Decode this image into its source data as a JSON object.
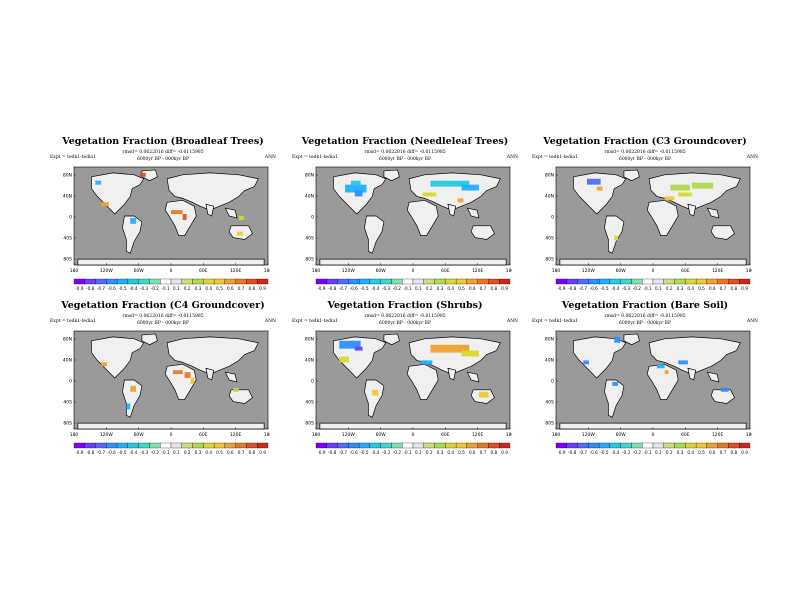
{
  "colorbar_colors": [
    "#7f00ff",
    "#6a3cff",
    "#4f6bff",
    "#2d8fff",
    "#1eb0ff",
    "#21cbe6",
    "#3ed9c8",
    "#7fe0b0",
    "#ffffff",
    "#e6e6e6",
    "#c8e07a",
    "#b0d850",
    "#d8d830",
    "#f0c830",
    "#f0a030",
    "#e87828",
    "#e05020",
    "#d02818"
  ],
  "ocean_color": "#9a9a9a",
  "land_color": "#f0f0f0",
  "panels": [
    {
      "title": "Vegetation Fraction (Broadleaf Trees)",
      "stats": "rmsd= 0.0622016 diff= -0.0115985",
      "expt": "Expt = tedk1-tedia1",
      "years": "6000yr BP - 000kyr BP",
      "season": "ANN",
      "ticks": [
        "-0.9",
        "-0.8",
        "-0.7",
        "-0.6",
        "-0.5",
        "-0.4",
        "-0.3",
        "-0.2",
        "-0.1",
        "0.1",
        "0.2",
        "0.3",
        "0.4",
        "0.5",
        "0.6",
        "0.7",
        "0.8",
        "0.9"
      ],
      "lon_labels": [
        "180",
        "120W",
        "60W",
        "0",
        "60E",
        "120E",
        "180"
      ],
      "lat_labels": [
        "80N",
        "40N",
        "0",
        "40S",
        "80S"
      ]
    },
    {
      "title": "Vegetation Fraction (Needleleaf Trees)",
      "stats": "rmsd= 0.0622016 diff= -0.0115985",
      "expt": "Expt = tedk1-tedia1",
      "years": "6000yr BP - 000kyr BP",
      "season": "ANN",
      "ticks": [
        "-0.9",
        "-0.8",
        "-0.7",
        "-0.6",
        "-0.5",
        "-0.4",
        "-0.3",
        "-0.2",
        "-0.1",
        "0.1",
        "0.2",
        "0.3",
        "0.4",
        "0.5",
        "0.6",
        "0.7",
        "0.8",
        "0.9"
      ],
      "lon_labels": [
        "180",
        "120W",
        "60W",
        "0",
        "60E",
        "120E",
        "180"
      ],
      "lat_labels": [
        "80N",
        "40N",
        "0",
        "40S",
        "80S"
      ]
    },
    {
      "title": "Vegetation Fraction (C3 Groundcover)",
      "stats": "rmsd= 0.0622016 diff= -0.0115985",
      "expt": "Expt = tedk1-tedia1",
      "years": "6000yr BP - 000kyr BP",
      "season": "ANN",
      "ticks": [
        "-0.9",
        "-0.8",
        "-0.7",
        "-0.6",
        "-0.5",
        "-0.4",
        "-0.3",
        "-0.2",
        "-0.1",
        "0.1",
        "0.2",
        "0.3",
        "0.4",
        "0.5",
        "0.6",
        "0.7",
        "0.8",
        "0.9"
      ],
      "lon_labels": [
        "180",
        "120W",
        "60W",
        "0",
        "60E",
        "120E",
        "180"
      ],
      "lat_labels": [
        "80N",
        "40N",
        "0",
        "40S",
        "80S"
      ]
    },
    {
      "title": "Vegetation Fraction (C4 Groundcover)",
      "stats": "rmsd= 0.0622016 diff= -0.0115985",
      "expt": "Expt = tedk1-tedia1",
      "years": "6000yr BP - 000kyr BP",
      "season": "ANN",
      "ticks": [
        "-0.9",
        "-0.8",
        "-0.7",
        "-0.6",
        "-0.5",
        "-0.4",
        "-0.3",
        "-0.2",
        "-0.1",
        "0.1",
        "0.2",
        "0.3",
        "0.4",
        "0.5",
        "0.6",
        "0.7",
        "0.8",
        "0.9"
      ],
      "lon_labels": [
        "180",
        "120W",
        "60W",
        "0",
        "60E",
        "120E",
        "180"
      ],
      "lat_labels": [
        "80N",
        "40N",
        "0",
        "40S",
        "80S"
      ]
    },
    {
      "title": "Vegetation Fraction (Shrubs)",
      "stats": "rmsd= 0.0622016 diff= -0.0115985",
      "expt": "Expt = tedk1-tedia1",
      "years": "6000yr BP - 000kyr BP",
      "season": "ANN",
      "ticks": [
        "-0.9",
        "-0.8",
        "-0.7",
        "-0.6",
        "-0.5",
        "-0.4",
        "-0.3",
        "-0.2",
        "-0.1",
        "0.1",
        "0.2",
        "0.3",
        "0.4",
        "0.5",
        "0.6",
        "0.7",
        "0.8",
        "0.9"
      ],
      "lon_labels": [
        "180",
        "120W",
        "60W",
        "0",
        "60E",
        "120E",
        "180"
      ],
      "lat_labels": [
        "80N",
        "40N",
        "0",
        "40S",
        "80S"
      ]
    },
    {
      "title": "Vegetation Fraction (Bare Soil)",
      "stats": "rmsd= 0.0622016 diff= -0.0115985",
      "expt": "Expt = tedk1-tedia1",
      "years": "6000yr BP - 000kyr BP",
      "season": "ANN",
      "ticks": [
        "-0.9",
        "-0.8",
        "-0.7",
        "-0.6",
        "-0.5",
        "-0.4",
        "-0.3",
        "-0.2",
        "-0.1",
        "0.1",
        "0.2",
        "0.3",
        "0.4",
        "0.5",
        "0.6",
        "0.7",
        "0.8",
        "0.9"
      ],
      "lon_labels": [
        "180",
        "120W",
        "60W",
        "0",
        "60E",
        "120E",
        "180"
      ],
      "lat_labels": [
        "80N",
        "40N",
        "0",
        "40S",
        "80S"
      ]
    }
  ]
}
